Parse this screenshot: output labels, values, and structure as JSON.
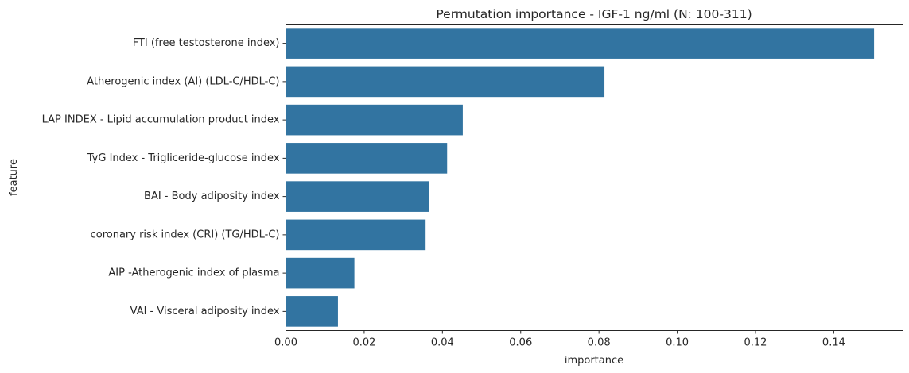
{
  "chart_data": {
    "type": "bar",
    "orientation": "horizontal",
    "title": "Permutation importance - IGF-1 ng/ml (N: 100-311)",
    "xlabel": "importance",
    "ylabel": "feature",
    "categories": [
      "FTI (free testosterone index)",
      "Atherogenic index (AI) (LDL-C/HDL-C) ",
      "LAP INDEX - Lipid accumulation product index",
      "TyG Index - Trigliceride-glucose index",
      "BAI - Body adiposity index",
      "coronary risk index (CRI) (TG/HDL-C)",
      "AIP -Atherogenic index of plasma",
      "VAI - Visceral adiposity index"
    ],
    "values": [
      0.1503,
      0.0814,
      0.0452,
      0.0412,
      0.0365,
      0.0357,
      0.0175,
      0.0133
    ],
    "xlim": [
      0,
      0.1577
    ],
    "xticks": [
      0.0,
      0.02,
      0.04,
      0.06,
      0.08,
      0.1,
      0.12,
      0.14
    ],
    "xtick_labels": [
      "0.00",
      "0.02",
      "0.04",
      "0.06",
      "0.08",
      "0.10",
      "0.12",
      "0.14"
    ],
    "bar_color": "#3274a1",
    "grid": false,
    "legend": "none"
  }
}
